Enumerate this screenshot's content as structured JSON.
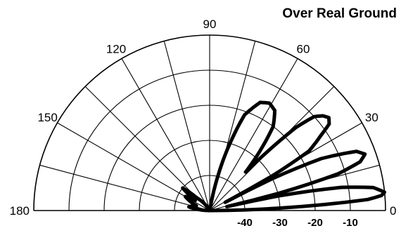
{
  "chart_data": {
    "type": "polar-elevation-pattern",
    "title": "Over Real Ground",
    "angle_range": [
      0,
      180
    ],
    "angle_ticks": [
      0,
      30,
      60,
      90,
      120,
      150,
      180
    ],
    "angle_tick_labels": [
      "0",
      "30",
      "60",
      "90",
      "120",
      "150",
      "180"
    ],
    "radial_ticks": [
      -40,
      -30,
      -20,
      -10
    ],
    "radial_tick_labels": [
      "-40",
      "-30",
      "-20",
      "-10"
    ],
    "radial_min_db": -50,
    "radial_max_db": 0,
    "grid": true,
    "pattern_db": [
      [
        0,
        -50
      ],
      [
        2,
        -30
      ],
      [
        4,
        -5
      ],
      [
        5,
        -1
      ],
      [
        6,
        0
      ],
      [
        8,
        -3
      ],
      [
        10,
        -12
      ],
      [
        12,
        -30
      ],
      [
        13,
        -45
      ],
      [
        14,
        -30
      ],
      [
        16,
        -12
      ],
      [
        18,
        -5
      ],
      [
        20,
        -3
      ],
      [
        22,
        -5
      ],
      [
        25,
        -15
      ],
      [
        27,
        -30
      ],
      [
        28,
        -45
      ],
      [
        29,
        -30
      ],
      [
        31,
        -17
      ],
      [
        34,
        -12
      ],
      [
        36,
        -8
      ],
      [
        38,
        -7
      ],
      [
        40,
        -8
      ],
      [
        42,
        -10
      ],
      [
        44,
        -16
      ],
      [
        47,
        -35
      ],
      [
        49,
        -30
      ],
      [
        53,
        -20
      ],
      [
        57,
        -16
      ],
      [
        61,
        -15
      ],
      [
        65,
        -16
      ],
      [
        70,
        -21
      ],
      [
        75,
        -35
      ],
      [
        80,
        -50
      ],
      [
        90,
        -50
      ],
      [
        120,
        -50
      ],
      [
        135,
        -45
      ],
      [
        140,
        -40
      ],
      [
        145,
        -45
      ],
      [
        150,
        -42
      ],
      [
        160,
        -46
      ],
      [
        170,
        -44
      ],
      [
        180,
        -50
      ]
    ],
    "pattern_color": "#000000"
  }
}
